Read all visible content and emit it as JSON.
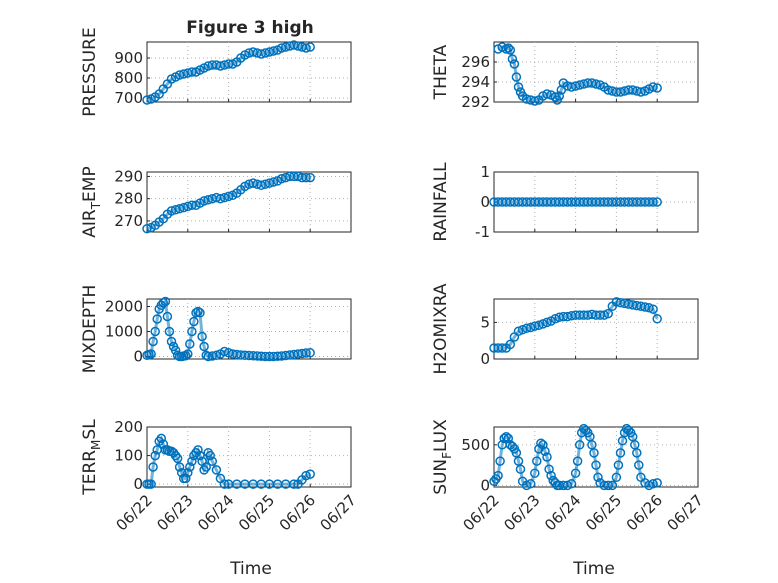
{
  "figure": {
    "title": "Figure 3 high",
    "xlabel": "Time",
    "xticks": [
      "06/22",
      "06/23",
      "06/24",
      "06/25",
      "06/26",
      "06/27"
    ],
    "xlim": [
      0,
      5
    ],
    "series_color": "#0072bd"
  },
  "chart_data": [
    {
      "type": "scatter",
      "ylabel": "PRESSURE",
      "ylim": [
        680,
        980
      ],
      "yticks": [
        700,
        800,
        900
      ],
      "ytick_labels": [
        "700",
        "800",
        "900"
      ],
      "x": [
        0,
        0.1,
        0.2,
        0.3,
        0.4,
        0.5,
        0.6,
        0.7,
        0.8,
        0.9,
        1.0,
        1.1,
        1.2,
        1.3,
        1.4,
        1.5,
        1.6,
        1.7,
        1.8,
        1.9,
        2.0,
        2.1,
        2.2,
        2.3,
        2.4,
        2.5,
        2.6,
        2.7,
        2.8,
        2.9,
        3.0,
        3.1,
        3.2,
        3.3,
        3.4,
        3.5,
        3.6,
        3.7,
        3.8,
        3.9,
        4.0
      ],
      "y": [
        690,
        695,
        705,
        720,
        745,
        770,
        795,
        805,
        815,
        820,
        825,
        830,
        830,
        840,
        850,
        860,
        865,
        865,
        860,
        865,
        870,
        870,
        880,
        900,
        915,
        925,
        930,
        925,
        920,
        925,
        930,
        935,
        940,
        950,
        955,
        960,
        965,
        960,
        955,
        950,
        955
      ]
    },
    {
      "type": "scatter",
      "ylabel": "THETA",
      "ylim": [
        292,
        298
      ],
      "yticks": [
        292,
        294,
        296
      ],
      "ytick_labels": [
        "292",
        "294",
        "296"
      ],
      "x": [
        0.1,
        0.2,
        0.3,
        0.35,
        0.4,
        0.45,
        0.5,
        0.55,
        0.6,
        0.65,
        0.7,
        0.8,
        0.9,
        1.0,
        1.1,
        1.2,
        1.3,
        1.4,
        1.5,
        1.55,
        1.6,
        1.65,
        1.7,
        1.8,
        1.9,
        2.0,
        2.1,
        2.2,
        2.3,
        2.4,
        2.5,
        2.6,
        2.7,
        2.8,
        2.9,
        3.0,
        3.1,
        3.2,
        3.3,
        3.4,
        3.5,
        3.6,
        3.7,
        3.8,
        3.9,
        4.0
      ],
      "y": [
        297.3,
        297.5,
        297.3,
        297.4,
        297.2,
        296.3,
        295.8,
        294.5,
        293.5,
        293,
        292.6,
        292.3,
        292.2,
        292.1,
        292.2,
        292.6,
        292.8,
        292.7,
        292.5,
        292.2,
        292.6,
        293.2,
        293.9,
        293.6,
        293.5,
        293.6,
        293.7,
        293.8,
        293.9,
        293.9,
        293.8,
        293.7,
        293.5,
        293.2,
        293.1,
        293.0,
        293.0,
        293.1,
        293.2,
        293.2,
        293.1,
        293.0,
        293.1,
        293.3,
        293.5,
        293.4
      ]
    },
    {
      "type": "scatter",
      "ylabel": "AIR_TEMP",
      "ylim": [
        265,
        292
      ],
      "yticks": [
        270,
        280,
        290
      ],
      "ytick_labels": [
        "270",
        "280",
        "290"
      ],
      "x": [
        0,
        0.1,
        0.2,
        0.3,
        0.4,
        0.5,
        0.6,
        0.7,
        0.8,
        0.9,
        1.0,
        1.1,
        1.2,
        1.3,
        1.4,
        1.5,
        1.6,
        1.7,
        1.8,
        1.9,
        2.0,
        2.1,
        2.2,
        2.3,
        2.4,
        2.5,
        2.6,
        2.7,
        2.8,
        2.9,
        3.0,
        3.1,
        3.2,
        3.3,
        3.4,
        3.5,
        3.6,
        3.7,
        3.8,
        3.9,
        4.0
      ],
      "y": [
        266.5,
        267,
        268,
        269.5,
        271,
        273,
        274.5,
        275,
        275.5,
        276,
        276.5,
        277,
        277,
        278,
        279,
        279.5,
        280,
        280.5,
        280,
        280.5,
        281,
        281.5,
        282.5,
        284,
        285.5,
        286.5,
        287,
        286.5,
        286,
        286.5,
        287,
        287.5,
        288,
        289,
        289.5,
        290,
        290,
        290,
        289.5,
        289.5,
        289.5
      ]
    },
    {
      "type": "scatter",
      "ylabel": "RAINFALL",
      "ylim": [
        -1,
        1
      ],
      "yticks": [
        -1,
        0,
        1
      ],
      "ytick_labels": [
        "-1",
        "0",
        "1"
      ],
      "x": [
        0,
        0.1,
        0.2,
        0.3,
        0.4,
        0.5,
        0.6,
        0.7,
        0.8,
        0.9,
        1.0,
        1.1,
        1.2,
        1.3,
        1.4,
        1.5,
        1.6,
        1.7,
        1.8,
        1.9,
        2.0,
        2.1,
        2.2,
        2.3,
        2.4,
        2.5,
        2.6,
        2.7,
        2.8,
        2.9,
        3.0,
        3.1,
        3.2,
        3.3,
        3.4,
        3.5,
        3.6,
        3.7,
        3.8,
        3.9,
        4.0
      ],
      "y": [
        0,
        0,
        0,
        0,
        0,
        0,
        0,
        0,
        0,
        0,
        0,
        0,
        0,
        0,
        0,
        0,
        0,
        0,
        0,
        0,
        0,
        0,
        0,
        0,
        0,
        0,
        0,
        0,
        0,
        0,
        0,
        0,
        0,
        0,
        0,
        0,
        0,
        0,
        0,
        0,
        0
      ]
    },
    {
      "type": "scatter",
      "ylabel": "MIXDEPTH",
      "ylim": [
        -100,
        2300
      ],
      "yticks": [
        0,
        1000,
        2000
      ],
      "ytick_labels": [
        "0",
        "1000",
        "2000"
      ],
      "x": [
        0,
        0.05,
        0.1,
        0.15,
        0.2,
        0.25,
        0.3,
        0.35,
        0.4,
        0.45,
        0.5,
        0.55,
        0.6,
        0.65,
        0.7,
        0.75,
        0.8,
        0.85,
        0.9,
        0.95,
        1.0,
        1.05,
        1.1,
        1.15,
        1.2,
        1.25,
        1.3,
        1.35,
        1.4,
        1.45,
        1.5,
        1.6,
        1.7,
        1.8,
        1.9,
        2.0,
        2.1,
        2.2,
        2.3,
        2.4,
        2.5,
        2.6,
        2.7,
        2.8,
        2.9,
        3.0,
        3.1,
        3.2,
        3.3,
        3.4,
        3.5,
        3.6,
        3.7,
        3.8,
        3.9,
        4.0
      ],
      "y": [
        50,
        80,
        100,
        600,
        1000,
        1500,
        1900,
        2050,
        2150,
        2200,
        1600,
        1000,
        600,
        400,
        250,
        50,
        0,
        0,
        20,
        30,
        100,
        500,
        1000,
        1400,
        1750,
        1800,
        1750,
        800,
        400,
        50,
        0,
        20,
        50,
        100,
        200,
        150,
        100,
        80,
        60,
        50,
        40,
        30,
        20,
        10,
        0,
        0,
        0,
        10,
        20,
        40,
        60,
        80,
        100,
        120,
        140,
        150
      ]
    },
    {
      "type": "scatter",
      "ylabel": "H2OMIXRA",
      "ylim": [
        0,
        8.2
      ],
      "yticks": [
        0,
        5
      ],
      "ytick_labels": [
        "0",
        "5"
      ],
      "x": [
        0,
        0.1,
        0.2,
        0.3,
        0.4,
        0.5,
        0.6,
        0.7,
        0.8,
        0.9,
        1.0,
        1.1,
        1.2,
        1.3,
        1.4,
        1.5,
        1.6,
        1.7,
        1.8,
        1.9,
        2.0,
        2.1,
        2.2,
        2.3,
        2.4,
        2.5,
        2.6,
        2.7,
        2.8,
        2.9,
        3.0,
        3.1,
        3.2,
        3.3,
        3.4,
        3.5,
        3.6,
        3.7,
        3.8,
        3.9,
        4.0
      ],
      "y": [
        1.5,
        1.5,
        1.5,
        1.5,
        2.0,
        3.0,
        3.8,
        4.0,
        4.2,
        4.3,
        4.5,
        4.6,
        4.8,
        5.0,
        5.2,
        5.5,
        5.7,
        5.8,
        5.8,
        5.9,
        6.0,
        6.0,
        6.0,
        6.0,
        6.1,
        6.0,
        6.0,
        6.0,
        6.2,
        7.2,
        7.8,
        7.7,
        7.6,
        7.5,
        7.4,
        7.3,
        7.2,
        7.1,
        7.0,
        6.8,
        5.5
      ]
    },
    {
      "type": "scatter",
      "ylabel": "TERR_MSL",
      "ylim": [
        -10,
        200
      ],
      "yticks": [
        0,
        100,
        200
      ],
      "ytick_labels": [
        "0",
        "100",
        "200"
      ],
      "x": [
        0,
        0.05,
        0.1,
        0.15,
        0.2,
        0.25,
        0.3,
        0.35,
        0.4,
        0.45,
        0.5,
        0.55,
        0.6,
        0.65,
        0.7,
        0.75,
        0.8,
        0.85,
        0.9,
        0.95,
        1.0,
        1.05,
        1.1,
        1.15,
        1.2,
        1.25,
        1.3,
        1.35,
        1.4,
        1.45,
        1.5,
        1.55,
        1.6,
        1.7,
        1.8,
        1.9,
        2.0,
        2.2,
        2.4,
        2.6,
        2.8,
        3.0,
        3.2,
        3.4,
        3.6,
        3.7,
        3.8,
        3.9,
        4.0
      ],
      "y": [
        0,
        0,
        0,
        60,
        100,
        120,
        150,
        160,
        140,
        120,
        120,
        115,
        115,
        110,
        100,
        90,
        60,
        40,
        20,
        20,
        40,
        60,
        80,
        100,
        110,
        120,
        100,
        80,
        50,
        60,
        110,
        100,
        80,
        50,
        20,
        0,
        0,
        0,
        0,
        0,
        0,
        0,
        0,
        0,
        0,
        0,
        15,
        30,
        35
      ]
    },
    {
      "type": "scatter",
      "ylabel": "SUN_FLUX",
      "ylim": [
        -20,
        720
      ],
      "yticks": [
        0,
        500
      ],
      "ytick_labels": [
        "0",
        "500"
      ],
      "x": [
        0,
        0.05,
        0.1,
        0.15,
        0.2,
        0.25,
        0.3,
        0.35,
        0.4,
        0.45,
        0.5,
        0.55,
        0.6,
        0.65,
        0.7,
        0.8,
        0.9,
        1.0,
        1.05,
        1.1,
        1.15,
        1.2,
        1.25,
        1.3,
        1.35,
        1.4,
        1.45,
        1.5,
        1.55,
        1.6,
        1.7,
        1.8,
        1.9,
        2.0,
        2.05,
        2.1,
        2.15,
        2.2,
        2.25,
        2.3,
        2.35,
        2.4,
        2.45,
        2.5,
        2.55,
        2.6,
        2.7,
        2.8,
        2.9,
        3.0,
        3.05,
        3.1,
        3.15,
        3.2,
        3.25,
        3.3,
        3.35,
        3.4,
        3.45,
        3.5,
        3.55,
        3.6,
        3.7,
        3.8,
        3.9,
        4.0
      ],
      "y": [
        50,
        80,
        120,
        300,
        500,
        580,
        600,
        580,
        500,
        480,
        450,
        400,
        300,
        200,
        50,
        0,
        20,
        150,
        300,
        450,
        520,
        500,
        420,
        350,
        200,
        120,
        60,
        30,
        0,
        0,
        0,
        0,
        20,
        150,
        300,
        500,
        650,
        700,
        680,
        650,
        600,
        500,
        400,
        250,
        100,
        30,
        0,
        0,
        0,
        100,
        250,
        400,
        550,
        650,
        700,
        680,
        650,
        600,
        500,
        400,
        250,
        100,
        30,
        0,
        20,
        30
      ]
    }
  ]
}
